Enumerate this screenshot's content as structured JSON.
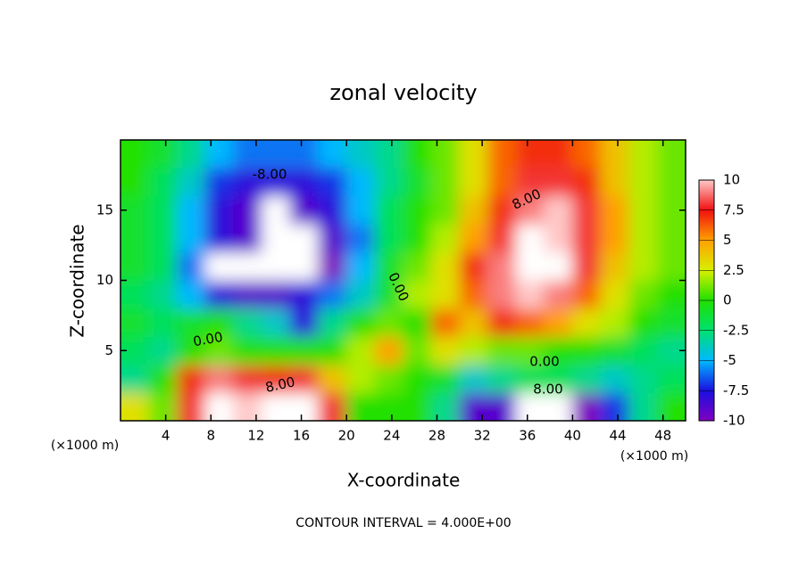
{
  "chart_data": {
    "type": "heatmap",
    "title": "zonal velocity",
    "x_label": "X-coordinate",
    "y_label": "Z-coordinate",
    "x_unit": "(×1000 m)",
    "z_unit": "(×1000 m)",
    "note": "CONTOUR INTERVAL = 4.000E+00",
    "contour_labels": [
      "-8.00",
      "8.00",
      "0.00",
      "0.00",
      "8.00",
      "0.00",
      "8.00"
    ],
    "xlim": [
      0,
      50
    ],
    "ylim": [
      0,
      20
    ],
    "xticks": [
      4,
      8,
      12,
      16,
      20,
      24,
      28,
      32,
      36,
      40,
      44,
      48
    ],
    "yticks": [
      5,
      10,
      15
    ],
    "clim": [
      -10,
      10
    ],
    "cticks": [
      10,
      7.5,
      5,
      2.5,
      0,
      -2.5,
      -5,
      -7.5,
      -10
    ],
    "colors": [
      "#8000c0",
      "#1a10e0",
      "#00b8ff",
      "#00e070",
      "#20e000",
      "#d8f000",
      "#ffa000",
      "#f01010",
      "#ffc8c8"
    ],
    "out_of_range_color": "#ffffff",
    "x": [
      1.25,
      3.75,
      6.25,
      8.75,
      11.25,
      13.75,
      16.25,
      18.75,
      21.25,
      23.75,
      26.25,
      28.75,
      31.25,
      33.75,
      36.25,
      38.75,
      41.25,
      43.75,
      46.25,
      48.75
    ],
    "z": [
      1,
      3,
      5,
      7,
      9,
      11,
      13,
      15,
      17,
      19
    ],
    "values": [
      [
        3,
        1,
        8,
        11,
        10,
        11,
        11,
        8,
        0,
        0,
        0,
        -3,
        -9,
        -9,
        -11,
        -11,
        -10,
        -7,
        -3,
        0
      ],
      [
        -3,
        0,
        7,
        9,
        8,
        7,
        8,
        4,
        2,
        1,
        0,
        -1,
        -4,
        -3,
        -2,
        -2,
        -3,
        -4,
        -3,
        -2
      ],
      [
        -2,
        -3,
        0,
        1,
        0,
        0,
        0,
        0,
        2,
        5,
        1,
        3,
        2,
        1,
        1,
        0,
        0,
        -1,
        -2,
        -3
      ],
      [
        -1,
        -2,
        -1,
        0,
        -3,
        -4,
        -8,
        -3,
        0,
        1,
        0,
        6,
        4,
        7,
        6,
        5,
        3,
        2,
        0,
        -1
      ],
      [
        -2,
        -3,
        -5,
        -8,
        -9,
        -9,
        -8,
        -6,
        -4,
        -1,
        2,
        3,
        6,
        9,
        10,
        9,
        6,
        3,
        1,
        0
      ],
      [
        -1,
        -2,
        -6,
        -11,
        -11,
        -11,
        -11,
        -10,
        -5,
        -1,
        1,
        3,
        7,
        9,
        11,
        11,
        8,
        4,
        2,
        1
      ],
      [
        -1,
        -2,
        -5,
        -8,
        -9,
        -11,
        -11,
        -9,
        -6,
        -2,
        0,
        2,
        5,
        8,
        11,
        10,
        8,
        5,
        2,
        1
      ],
      [
        -1,
        -2,
        -5,
        -8,
        -9,
        -11,
        -9,
        -8,
        -5,
        -2,
        0,
        1,
        4,
        7,
        9,
        10,
        8,
        5,
        2,
        1
      ],
      [
        0,
        -2,
        -4,
        -7,
        -8,
        -8,
        -8,
        -7,
        -5,
        -3,
        -1,
        1,
        3,
        6,
        8,
        8,
        7,
        4,
        2,
        1
      ],
      [
        0,
        -1,
        -3,
        -5,
        -6,
        -6,
        -6,
        -5,
        -4,
        -3,
        0,
        1,
        3,
        6,
        7,
        7,
        6,
        4,
        2,
        1
      ]
    ]
  }
}
